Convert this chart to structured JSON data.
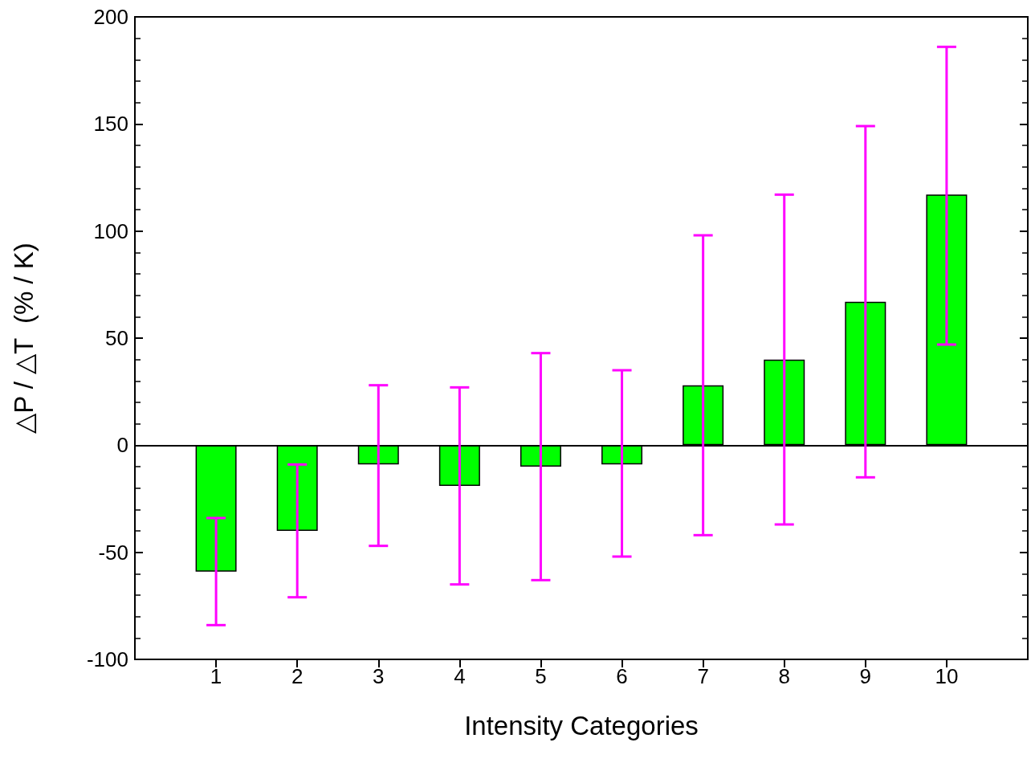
{
  "chart_data": {
    "type": "bar",
    "xlabel": "Intensity Categories",
    "ylabel": "△P / △T  (% / K)",
    "x": [
      1,
      2,
      3,
      4,
      5,
      6,
      7,
      8,
      9,
      10
    ],
    "values": [
      -59,
      -40,
      -9,
      -19,
      -10,
      -9,
      28,
      40,
      67,
      117
    ],
    "color": "#00ff00",
    "errors": [
      [
        -84,
        -34
      ],
      [
        -71,
        -9
      ],
      [
        -47,
        28
      ],
      [
        -65,
        27
      ],
      [
        -63,
        43
      ],
      [
        -52,
        35
      ],
      [
        -42,
        98
      ],
      [
        -37,
        117
      ],
      [
        -15,
        149
      ],
      [
        47,
        186
      ]
    ],
    "xlim": [
      0,
      11
    ],
    "xticks": [
      1,
      2,
      3,
      4,
      5,
      6,
      7,
      8,
      9,
      10
    ],
    "ylim": [
      -100,
      200
    ],
    "yticks": [
      -100,
      -50,
      0,
      50,
      100,
      150,
      200
    ],
    "ref_lines": [
      {
        "axis": "y",
        "value": 0,
        "color": "#000000"
      }
    ],
    "grid": false
  }
}
